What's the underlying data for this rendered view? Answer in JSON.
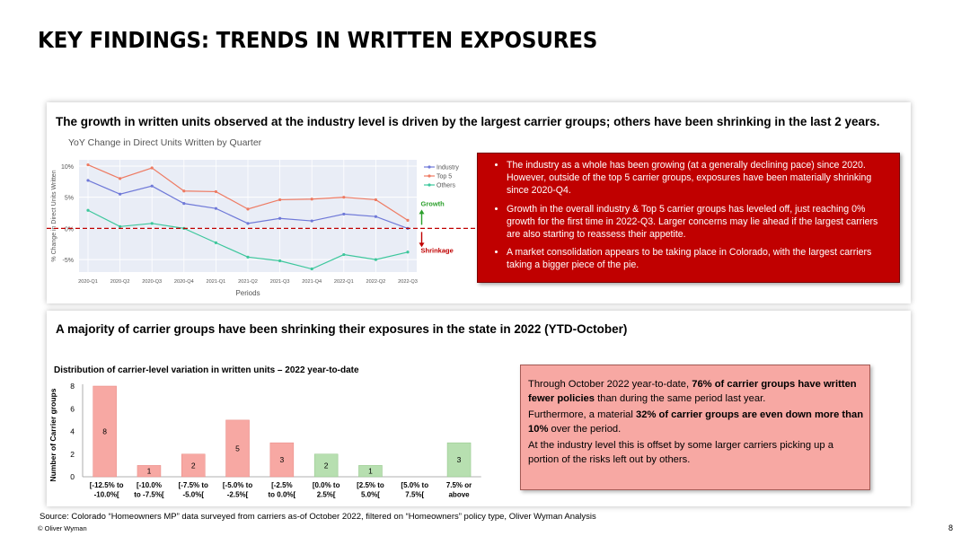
{
  "slide": {
    "title": "KEY FINDINGS: TRENDS IN WRITTEN EXPOSURES",
    "page_number": "8",
    "source": "Source: Colorado “Homeowners MP” data surveyed from carriers as-of October 2022, filtered on “Homeowners” policy type, Oliver Wyman Analysis",
    "copyright": "© Oliver Wyman"
  },
  "panel1": {
    "heading": "The growth in written units observed at the industry level is driven by the largest carrier groups; others have been shrinking in the last 2 years.",
    "growth_label": "Growth",
    "shrinkage_label": "Shrinkage",
    "bullets": [
      "The industry as a whole has been growing (at a generally declining pace) since 2020. However, outside of the top 5 carrier groups, exposures have been materially shrinking since 2020-Q4.",
      "Growth in the overall industry & Top 5 carrier groups has leveled off, just reaching 0% growth for the first time in 2022-Q3. Larger concerns may lie ahead if the largest carriers are also starting to reassess their appetite.",
      "A market consolidation appears to be taking place in Colorado, with the largest carriers taking a bigger piece of the pie."
    ]
  },
  "panel2": {
    "heading": "A majority of carrier groups have been shrinking their exposures in the state in 2022 (YTD-October)",
    "callout": {
      "p1_a": "Through October 2022 year-to-date, ",
      "p1_b": "76% of carrier groups have written fewer policies",
      "p1_c": " than during the same period last year.",
      "p2_a": "Furthermore, a material ",
      "p2_b": "32% of carrier groups are even down more than 10%",
      "p2_c": " over the period.",
      "p3": "At the industry level this is offset by some larger carriers picking up a portion of the risks left out by others."
    }
  },
  "chart_data": [
    {
      "type": "line",
      "title": "YoY Change in Direct Units Written by Quarter",
      "xlabel": "Periods",
      "ylabel": "% Change in Direct Units Written",
      "x": [
        "2020-Q1",
        "2020-Q2",
        "2020-Q3",
        "2020-Q4",
        "2021-Q1",
        "2021-Q2",
        "2021-Q3",
        "2021-Q4",
        "2022-Q1",
        "2022-Q2",
        "2022-Q3"
      ],
      "ylim": [
        -7,
        11
      ],
      "yticks": [
        10,
        5,
        0,
        -5
      ],
      "ytick_labels": [
        "10%",
        "5%",
        "0%",
        "-5%"
      ],
      "legend_position": "right",
      "series": [
        {
          "name": "Industry",
          "color": "#6f79d8",
          "values": [
            7.7,
            5.5,
            6.8,
            4.0,
            3.2,
            0.8,
            1.6,
            1.2,
            2.3,
            1.9,
            0.0
          ]
        },
        {
          "name": "Top 5",
          "color": "#ee7b63",
          "values": [
            10.2,
            8.0,
            9.7,
            6.0,
            5.9,
            3.1,
            4.6,
            4.7,
            5.0,
            4.6,
            1.3
          ]
        },
        {
          "name": "Others",
          "color": "#3dc79c",
          "values": [
            2.9,
            0.3,
            0.8,
            0.0,
            -2.3,
            -4.6,
            -5.2,
            -6.5,
            -4.2,
            -5.0,
            -3.8
          ]
        }
      ]
    },
    {
      "type": "bar",
      "title": "Distribution of carrier-level variation in written units – 2022 year-to-date",
      "ylabel": "Number of Carrier groups",
      "ylim": [
        0,
        8
      ],
      "yticks": [
        0,
        2,
        4,
        6,
        8
      ],
      "categories": [
        [
          "[-12.5% to",
          "-10.0%["
        ],
        [
          "[-10.0%",
          "to -7.5%["
        ],
        [
          "[-7.5% to",
          "-5.0%["
        ],
        [
          "[-5.0% to",
          "-2.5%["
        ],
        [
          "[-2.5%",
          "to 0.0%["
        ],
        [
          "[0.0% to",
          "2.5%["
        ],
        [
          "[2.5% to",
          "5.0%["
        ],
        [
          "[5.0% to",
          "7.5%["
        ],
        [
          "7.5% or",
          "above"
        ]
      ],
      "values": [
        8,
        1,
        2,
        5,
        3,
        2,
        1,
        0,
        3
      ],
      "colors": {
        "negative": "#f7a8a3",
        "positive": "#b7dfb0"
      }
    }
  ]
}
